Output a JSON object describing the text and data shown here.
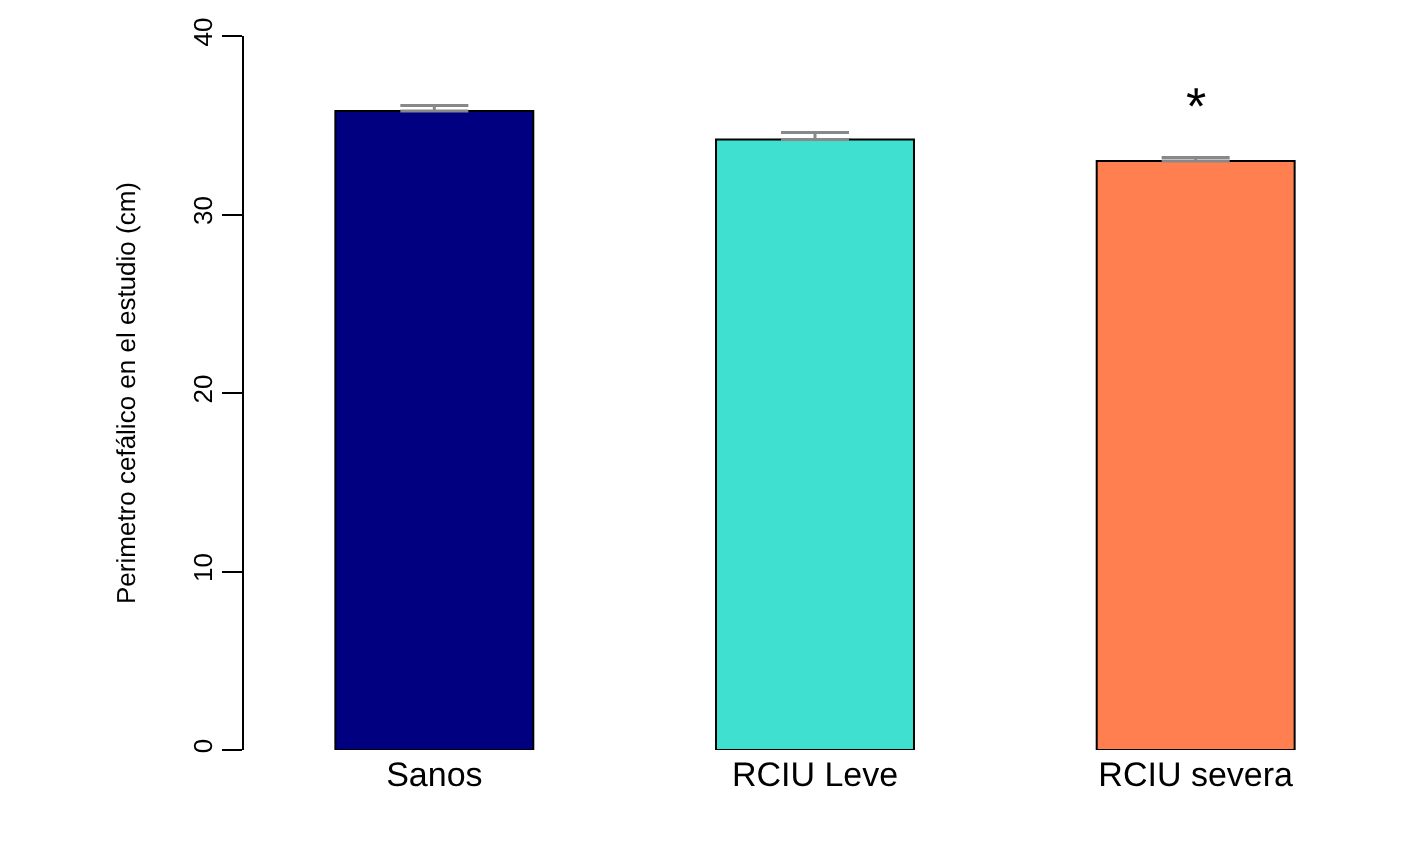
{
  "chart_data": {
    "type": "bar",
    "ylabel": "Perimetro cefálico en el estudio (cm)",
    "categories": [
      "Sanos",
      "RCIU Leve",
      "RCIU severa"
    ],
    "values": [
      35.8,
      34.2,
      33.0
    ],
    "errors": [
      [
        35.8,
        36.1
      ],
      [
        34.2,
        34.6
      ],
      [
        33.0,
        33.2
      ]
    ],
    "colors": [
      "#000080",
      "#40e0d0",
      "#ff7f50"
    ],
    "ylim": [
      0,
      40
    ],
    "yticks": [
      0,
      10,
      20,
      30,
      40
    ],
    "grid": false,
    "annotations": [
      "*"
    ]
  }
}
